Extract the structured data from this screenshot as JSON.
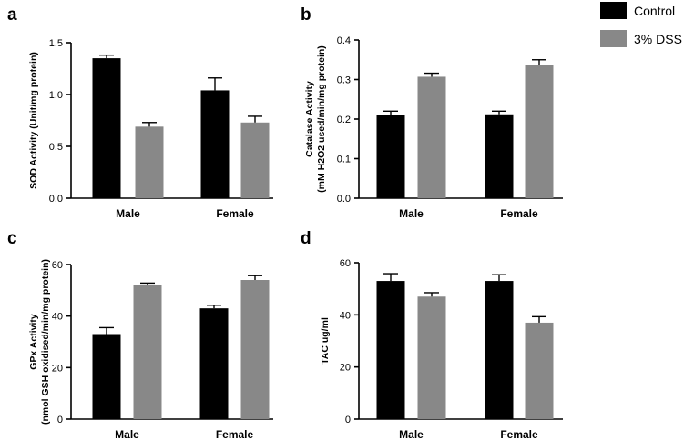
{
  "colors": {
    "control": "#000000",
    "dss": "#888888",
    "axis": "#000000"
  },
  "legend": [
    {
      "label": "Control",
      "color": "#000000"
    },
    {
      "label": "3% DSS",
      "color": "#888888"
    }
  ],
  "chart_data": [
    {
      "panel": "a",
      "type": "bar",
      "categories": [
        "Male",
        "Female"
      ],
      "ylabel": [
        "SOD Activity (Unit/mg protein)"
      ],
      "ylim": [
        0,
        1.5
      ],
      "yticks": [
        0.0,
        0.5,
        1.0,
        1.5
      ],
      "ytick_labels": [
        "0.0",
        "0.5",
        "1.0",
        "1.5"
      ],
      "series": [
        {
          "name": "Control",
          "values": [
            1.35,
            1.04
          ],
          "errors": [
            0.03,
            0.12
          ]
        },
        {
          "name": "3% DSS",
          "values": [
            0.69,
            0.73
          ],
          "errors": [
            0.04,
            0.06
          ]
        }
      ]
    },
    {
      "panel": "b",
      "type": "bar",
      "categories": [
        "Male",
        "Female"
      ],
      "ylabel": [
        "Catalase Activity",
        "(mM H2O2 used/min/mg protein)"
      ],
      "ylim": [
        0,
        0.4
      ],
      "yticks": [
        0.0,
        0.1,
        0.2,
        0.3,
        0.4
      ],
      "ytick_labels": [
        "0.0",
        "0.1",
        "0.2",
        "0.3",
        "0.4"
      ],
      "series": [
        {
          "name": "Control",
          "values": [
            0.21,
            0.212
          ],
          "errors": [
            0.01,
            0.008
          ]
        },
        {
          "name": "3% DSS",
          "values": [
            0.307,
            0.337
          ],
          "errors": [
            0.009,
            0.013
          ]
        }
      ]
    },
    {
      "panel": "c",
      "type": "bar",
      "categories": [
        "Male",
        "Female"
      ],
      "ylabel": [
        "GPx Activity",
        "(nmol GSH oxidised/min/mg protein)"
      ],
      "ylim": [
        0,
        60
      ],
      "yticks": [
        0,
        20,
        40,
        60
      ],
      "ytick_labels": [
        "0",
        "20",
        "40",
        "60"
      ],
      "series": [
        {
          "name": "Control",
          "values": [
            33,
            43
          ],
          "errors": [
            2.5,
            1.2
          ]
        },
        {
          "name": "3% DSS",
          "values": [
            52,
            54
          ],
          "errors": [
            0.8,
            1.7
          ]
        }
      ]
    },
    {
      "panel": "d",
      "type": "bar",
      "categories": [
        "Male",
        "Female"
      ],
      "ylabel": [
        "TAC ug/ml"
      ],
      "ylim": [
        0,
        60
      ],
      "yticks": [
        0,
        20,
        40,
        60
      ],
      "ytick_labels": [
        "0",
        "20",
        "40",
        "60"
      ],
      "series": [
        {
          "name": "Control",
          "values": [
            53,
            53
          ],
          "errors": [
            2.8,
            2.4
          ]
        },
        {
          "name": "3% DSS",
          "values": [
            47,
            37
          ],
          "errors": [
            1.5,
            2.3
          ]
        }
      ]
    }
  ]
}
